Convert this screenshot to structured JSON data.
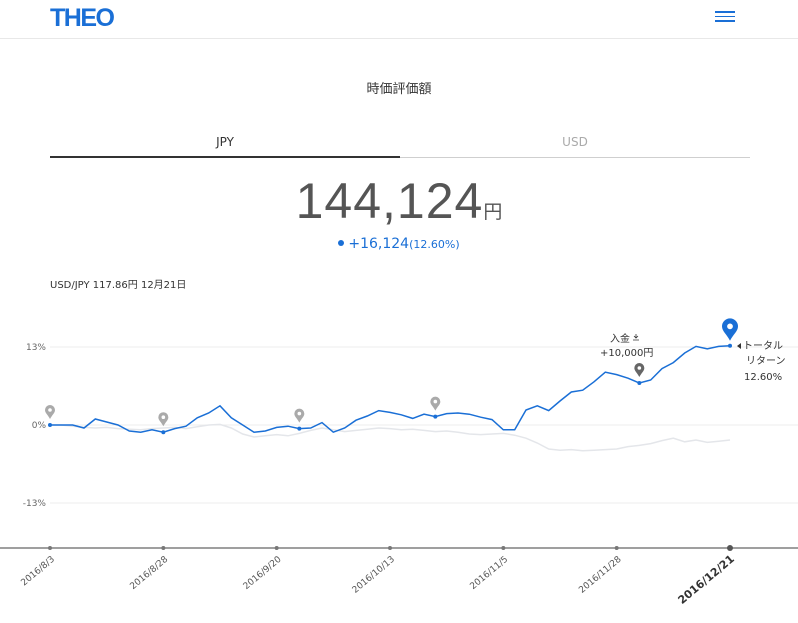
{
  "header": {
    "logo": "THEO",
    "menu_icon": "hamburger-icon"
  },
  "section": {
    "title": "時価評価額"
  },
  "tabs": [
    {
      "label": "JPY",
      "active": true
    },
    {
      "label": "USD",
      "active": false
    }
  ],
  "valuation": {
    "amount": "144,124",
    "unit": "円",
    "change": "+16,124",
    "change_pct": "(12.60%)"
  },
  "fx_rate": "USD/JPY 117.86円 12月21日",
  "deposit": {
    "label": "入金",
    "amount": "+10,000円"
  },
  "total_return": {
    "line1": "トータル",
    "line2": "リターン",
    "value": "12.60%"
  },
  "colors": {
    "accent": "#1a6fd6",
    "usd_line": "#e4e6ea",
    "marker_gray": "#9a9a9a"
  },
  "chart_data": {
    "type": "line",
    "y_ticks": [
      "13%",
      "0%",
      "-13%"
    ],
    "ylim": [
      -20,
      17
    ],
    "x_ticks": [
      "2016/8/3",
      "2016/8/28",
      "2016/9/20",
      "2016/10/13",
      "2016/11/5",
      "2016/11/28",
      "2016/12/21"
    ],
    "series": [
      {
        "values": [
          0,
          0,
          0,
          -0.5,
          1,
          0.5,
          0,
          -1,
          -1.2,
          -0.8,
          -1.2,
          -0.6,
          -0.2,
          1.2,
          2,
          3.2,
          1.2,
          0,
          -1.2,
          -1,
          -0.4,
          -0.2,
          -0.6,
          -0.5,
          0.4,
          -1.2,
          -0.5,
          0.8,
          1.5,
          2.4,
          2.1,
          1.7,
          1.1,
          1.8,
          1.4,
          1.9,
          2,
          1.8,
          1.3,
          0.9,
          -0.8,
          -0.8,
          2.5,
          3.2,
          2.4,
          4,
          5.5,
          5.8,
          7.2,
          8.8,
          8.4,
          7.8,
          7,
          7.5,
          9.4,
          10.4,
          12,
          13.1,
          12.7,
          13.1,
          13.2
        ]
      },
      {
        "values": [
          0,
          0,
          -0.2,
          -0.4,
          -0.5,
          -0.4,
          -0.6,
          -0.7,
          -0.8,
          -0.6,
          -0.5,
          -0.4,
          -0.6,
          -0.3,
          0,
          0.1,
          -0.5,
          -1.5,
          -2,
          -1.8,
          -1.6,
          -1.8,
          -1.4,
          -0.9,
          -0.5,
          -0.8,
          -1.1,
          -0.9,
          -0.7,
          -0.5,
          -0.6,
          -0.8,
          -0.7,
          -0.9,
          -1.1,
          -1.0,
          -1.2,
          -1.5,
          -1.6,
          -1.5,
          -1.4,
          -1.7,
          -2.2,
          -3,
          -4,
          -4.2,
          -4.1,
          -4.3,
          -4.2,
          -4.1,
          -4,
          -3.6,
          -3.4,
          -3.1,
          -2.6,
          -2.2,
          -2.8,
          -2.5,
          -2.9,
          -2.7,
          -2.5
        ]
      }
    ]
  }
}
